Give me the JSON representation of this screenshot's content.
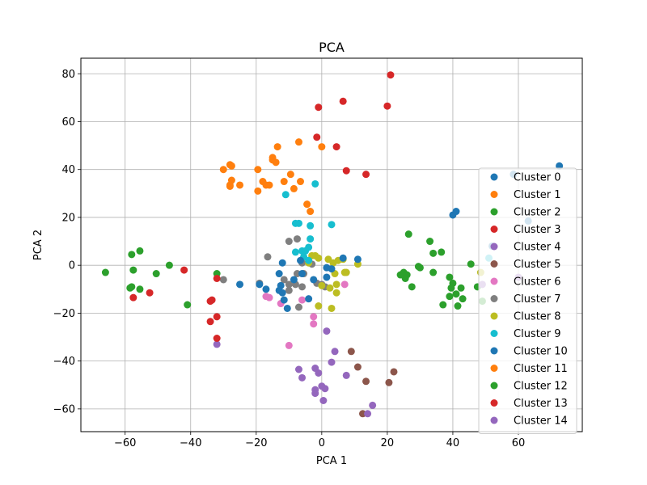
{
  "chart_data": {
    "type": "scatter",
    "title": "PCA",
    "xlabel": "PCA 1",
    "ylabel": "PCA 2",
    "xlim": [
      -73.5,
      79.5
    ],
    "ylim": [
      -69.5,
      86.5
    ],
    "xticks": [
      -60,
      -40,
      -20,
      0,
      20,
      40,
      60
    ],
    "yticks": [
      -60,
      -40,
      -20,
      0,
      20,
      40,
      60,
      80
    ],
    "grid": true,
    "legend_position": "right",
    "series": [
      {
        "name": "Cluster 0",
        "color": "#1f77b4",
        "points": [
          [
            72.5,
            41.5
          ],
          [
            58.5,
            38
          ],
          [
            52,
            8
          ],
          [
            63,
            18.5
          ],
          [
            40,
            21
          ]
        ]
      },
      {
        "name": "Cluster 1",
        "color": "#ff7f0e",
        "points": [
          [
            -30,
            40
          ],
          [
            -28,
            42
          ],
          [
            -27.5,
            41.5
          ],
          [
            -28,
            33.5
          ],
          [
            -27.5,
            35.5
          ],
          [
            -28,
            33
          ],
          [
            -25,
            33.5
          ],
          [
            -19.5,
            40
          ],
          [
            -19.5,
            31
          ],
          [
            -18,
            35
          ],
          [
            -17,
            33.5
          ],
          [
            -16,
            33.5
          ],
          [
            -15,
            45
          ],
          [
            -15,
            44
          ],
          [
            -14,
            43
          ],
          [
            -13.5,
            49.5
          ],
          [
            -11.5,
            35
          ],
          [
            -9.5,
            38
          ],
          [
            -8.5,
            32
          ],
          [
            -7,
            51.5
          ],
          [
            -6.5,
            35
          ],
          [
            -4.5,
            25.5
          ],
          [
            -3.5,
            22.5
          ],
          [
            0,
            49.5
          ]
        ]
      },
      {
        "name": "Cluster 2",
        "color": "#2ca02c",
        "points": [
          [
            26.5,
            13
          ],
          [
            33,
            10
          ],
          [
            36.5,
            5.5
          ],
          [
            34,
            5
          ],
          [
            29.5,
            -0.5
          ],
          [
            30,
            -1
          ],
          [
            25,
            -3
          ],
          [
            24,
            -4
          ],
          [
            26,
            -4
          ],
          [
            25.5,
            -5.5
          ],
          [
            27.5,
            -9
          ],
          [
            34,
            -3
          ],
          [
            39,
            -5
          ],
          [
            40,
            -7.5
          ],
          [
            41,
            -12
          ],
          [
            41.5,
            -17
          ],
          [
            43,
            -14
          ],
          [
            37,
            -16.5
          ],
          [
            39,
            -13
          ],
          [
            39.5,
            -9.5
          ],
          [
            42.5,
            -9.5
          ],
          [
            45.5,
            0.5
          ],
          [
            47.5,
            -9
          ],
          [
            49,
            -15
          ]
        ]
      },
      {
        "name": "Cluster 3",
        "color": "#d62728",
        "points": [
          [
            21,
            79.5
          ],
          [
            20,
            66.5
          ],
          [
            6.5,
            68.5
          ],
          [
            -1,
            66
          ],
          [
            -1.5,
            53.5
          ],
          [
            4.5,
            49.5
          ],
          [
            7.5,
            39.5
          ],
          [
            13.5,
            38
          ]
        ]
      },
      {
        "name": "Cluster 4",
        "color": "#9467bd",
        "points": [
          [
            -32,
            -33
          ],
          [
            49,
            -8
          ],
          [
            60,
            -5
          ]
        ]
      },
      {
        "name": "Cluster 5",
        "color": "#8c564b",
        "points": [
          [
            9,
            -36
          ],
          [
            11,
            -42.5
          ],
          [
            13.5,
            -48.5
          ],
          [
            12.5,
            -62
          ],
          [
            20.5,
            -49
          ],
          [
            22,
            -44.5
          ]
        ]
      },
      {
        "name": "Cluster 6",
        "color": "#e377c2",
        "points": [
          [
            -17,
            -13
          ],
          [
            -16,
            -13.5
          ],
          [
            -12.5,
            -16
          ],
          [
            -10,
            -33.5
          ],
          [
            -6,
            -14.5
          ],
          [
            -2.5,
            -21.5
          ],
          [
            -2.5,
            -24.5
          ],
          [
            7,
            -8
          ]
        ]
      },
      {
        "name": "Cluster 7",
        "color": "#7f7f7f",
        "points": [
          [
            -30,
            -6
          ],
          [
            -19,
            -7.5
          ],
          [
            -16.5,
            3.5
          ],
          [
            -10,
            10
          ],
          [
            -7.5,
            11
          ],
          [
            -6,
            1
          ],
          [
            -11.5,
            -6
          ],
          [
            -10,
            -8
          ],
          [
            -8,
            -8
          ],
          [
            -6,
            -9
          ],
          [
            -7,
            -17.5
          ],
          [
            -10,
            -10.5
          ],
          [
            -5.5,
            -3.5
          ],
          [
            -7.5,
            -3.5
          ],
          [
            -1.5,
            -7.5
          ],
          [
            0,
            -8
          ],
          [
            1,
            -9
          ],
          [
            -3,
            0.5
          ]
        ]
      },
      {
        "name": "Cluster 8",
        "color": "#bcbd22",
        "points": [
          [
            -4,
            1
          ],
          [
            -3,
            4
          ],
          [
            -2,
            4
          ],
          [
            -1,
            3
          ],
          [
            2,
            2.5
          ],
          [
            3.5,
            1
          ],
          [
            4,
            -3.5
          ],
          [
            5,
            2
          ],
          [
            6.5,
            2.5
          ],
          [
            7,
            -3
          ],
          [
            4.5,
            -8
          ],
          [
            4.5,
            -11.5
          ],
          [
            2.5,
            -9.5
          ],
          [
            0,
            -8.5
          ],
          [
            3,
            -18
          ],
          [
            -1,
            -17
          ],
          [
            7.5,
            -3
          ],
          [
            11,
            0.5
          ],
          [
            48.5,
            -3
          ]
        ]
      },
      {
        "name": "Cluster 9",
        "color": "#17becf",
        "points": [
          [
            -11,
            29.5
          ],
          [
            -2,
            34
          ],
          [
            -8,
            17.5
          ],
          [
            -7,
            17.5
          ],
          [
            -3.5,
            16.5
          ],
          [
            3,
            17
          ],
          [
            -3.5,
            11
          ],
          [
            -8,
            5.5
          ],
          [
            -6,
            6
          ],
          [
            -5,
            6
          ],
          [
            -4,
            2
          ],
          [
            -5.5,
            3.5
          ],
          [
            -4,
            7.5
          ],
          [
            51,
            3
          ]
        ]
      },
      {
        "name": "Cluster 10",
        "color": "#1f77b4",
        "points": [
          [
            41,
            22.5
          ],
          [
            6.5,
            3
          ],
          [
            11,
            2.5
          ],
          [
            -12,
            1
          ],
          [
            -13,
            -3.5
          ],
          [
            -12.5,
            -8.5
          ],
          [
            -13,
            -10.5
          ],
          [
            -12,
            -11.5
          ],
          [
            -11.5,
            -14.5
          ],
          [
            -10.5,
            -18
          ],
          [
            -17,
            -10
          ],
          [
            -19,
            -8
          ],
          [
            -25,
            -8
          ],
          [
            -8.5,
            -6
          ],
          [
            -6.5,
            2
          ],
          [
            -6,
            -3.5
          ],
          [
            -2.5,
            -6
          ],
          [
            1.5,
            -5
          ],
          [
            3,
            -1.5
          ],
          [
            -4,
            -14
          ],
          [
            1.5,
            -1
          ]
        ]
      },
      {
        "name": "Cluster 11",
        "color": "#ff7f0e",
        "points": []
      },
      {
        "name": "Cluster 12",
        "color": "#2ca02c",
        "points": [
          [
            -66,
            -3
          ],
          [
            -58,
            4.5
          ],
          [
            -55.5,
            6
          ],
          [
            -57.5,
            -2
          ],
          [
            -58,
            -9
          ],
          [
            -58.5,
            -9.5
          ],
          [
            -55.5,
            -10
          ],
          [
            -50.5,
            -3.5
          ],
          [
            -46.5,
            0
          ],
          [
            -41,
            -16.5
          ],
          [
            -32,
            -3.5
          ]
        ]
      },
      {
        "name": "Cluster 13",
        "color": "#d62728",
        "points": [
          [
            -57.5,
            -13.5
          ],
          [
            -52.5,
            -11.5
          ],
          [
            -42,
            -2
          ],
          [
            -34,
            -15
          ],
          [
            -33.5,
            -14.5
          ],
          [
            -34,
            -23.5
          ],
          [
            -32,
            -21.5
          ],
          [
            -32,
            -30.5
          ],
          [
            -32,
            -5.5
          ]
        ]
      },
      {
        "name": "Cluster 14",
        "color": "#9467bd",
        "points": [
          [
            -7,
            -43.5
          ],
          [
            -6,
            -47
          ],
          [
            -2,
            -43
          ],
          [
            -1,
            -45
          ],
          [
            -2,
            -52
          ],
          [
            -2,
            -53.5
          ],
          [
            0,
            -50.5
          ],
          [
            1,
            -51.5
          ],
          [
            0.5,
            -56.5
          ],
          [
            1.5,
            -27.5
          ],
          [
            3,
            -40.5
          ],
          [
            4,
            -36
          ],
          [
            7.5,
            -46
          ],
          [
            14,
            -62
          ],
          [
            15.5,
            -58.5
          ]
        ]
      }
    ]
  }
}
